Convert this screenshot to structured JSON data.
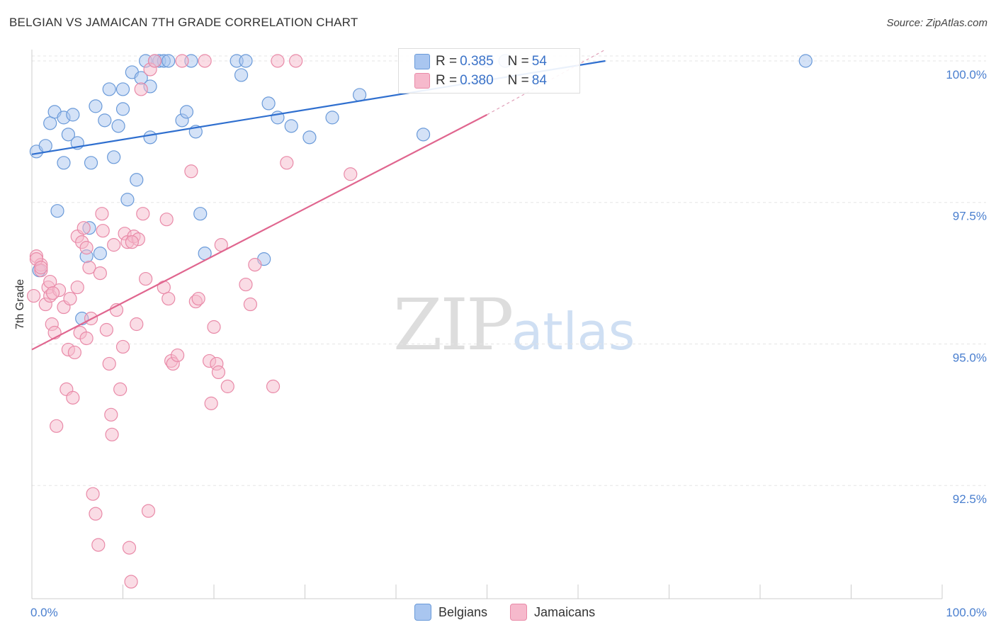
{
  "title": "BELGIAN VS JAMAICAN 7TH GRADE CORRELATION CHART",
  "source": "Source: ZipAtlas.com",
  "watermark": {
    "zip": "ZIP",
    "atlas": "atlas"
  },
  "legend": {
    "rows": [
      {
        "r_label": "R =",
        "r_value": "0.385",
        "n_label": "N =",
        "n_value": "54",
        "color": "#a9c6f0",
        "border": "#6a9ad9"
      },
      {
        "r_label": "R =",
        "r_value": "0.380",
        "n_label": "N =",
        "n_value": "84",
        "color": "#f6b9cc",
        "border": "#e98aa8"
      }
    ]
  },
  "bottom_legend": [
    {
      "label": "Belgians",
      "color": "#a9c6f0",
      "border": "#6a9ad9"
    },
    {
      "label": "Jamaicans",
      "color": "#f6b9cc",
      "border": "#e98aa8"
    }
  ],
  "chart_data": {
    "type": "scatter",
    "title": "BELGIAN VS JAMAICAN 7TH GRADE CORRELATION CHART",
    "xlabel": "",
    "ylabel": "7th Grade",
    "xlim": [
      0,
      100
    ],
    "ylim": [
      90.5,
      100.2
    ],
    "x_tick_labels": [
      "0.0%",
      "100.0%"
    ],
    "y_ticks": [
      92.5,
      95.0,
      97.5,
      100.0
    ],
    "y_tick_labels": [
      "92.5%",
      "95.0%",
      "97.5%",
      "100.0%"
    ],
    "grid": true,
    "series": [
      {
        "name": "Belgians",
        "color": "#6a9ad9",
        "fill": "#a9c6f0",
        "line_color": "#2f6fcf",
        "trend": {
          "x0": 0,
          "y0": 98.35,
          "x1": 63,
          "y1": 100.0
        },
        "points": [
          [
            0.5,
            98.4
          ],
          [
            1.5,
            98.5
          ],
          [
            2.0,
            98.9
          ],
          [
            2.5,
            99.1
          ],
          [
            2.8,
            97.35
          ],
          [
            3.5,
            98.2
          ],
          [
            3.5,
            99.0
          ],
          [
            4.0,
            98.7
          ],
          [
            4.5,
            99.05
          ],
          [
            5.0,
            98.55
          ],
          [
            5.5,
            95.45
          ],
          [
            6.0,
            96.55
          ],
          [
            6.3,
            97.05
          ],
          [
            6.5,
            98.2
          ],
          [
            7.0,
            99.2
          ],
          [
            7.5,
            96.6
          ],
          [
            8.0,
            98.95
          ],
          [
            8.5,
            99.5
          ],
          [
            9.0,
            98.3
          ],
          [
            9.5,
            98.85
          ],
          [
            10.0,
            99.15
          ],
          [
            10.0,
            99.5
          ],
          [
            10.5,
            97.55
          ],
          [
            11.0,
            99.8
          ],
          [
            11.5,
            97.9
          ],
          [
            12.0,
            99.7
          ],
          [
            12.5,
            100.0
          ],
          [
            13.0,
            99.55
          ],
          [
            13.0,
            98.65
          ],
          [
            14.0,
            100.0
          ],
          [
            14.5,
            100.0
          ],
          [
            15.0,
            100.0
          ],
          [
            16.5,
            98.95
          ],
          [
            17.0,
            99.1
          ],
          [
            18.0,
            98.75
          ],
          [
            18.5,
            97.3
          ],
          [
            19.0,
            96.6
          ],
          [
            22.5,
            100.0
          ],
          [
            23.0,
            99.75
          ],
          [
            25.5,
            96.5
          ],
          [
            26.0,
            99.25
          ],
          [
            27.0,
            99.0
          ],
          [
            28.5,
            98.85
          ],
          [
            30.5,
            98.65
          ],
          [
            33.0,
            99.0
          ],
          [
            36.0,
            99.4
          ],
          [
            43.0,
            98.7
          ],
          [
            50.0,
            100.0
          ],
          [
            52.0,
            100.0
          ],
          [
            85.0,
            100.0
          ],
          [
            17.5,
            100.0
          ],
          [
            0.8,
            96.3
          ],
          [
            13.5,
            100.0
          ],
          [
            23.5,
            100.0
          ]
        ]
      },
      {
        "name": "Jamaicans",
        "color": "#e98aa8",
        "fill": "#f6b9cc",
        "line_color": "#e0668f",
        "trend": {
          "x0": 0,
          "y0": 94.9,
          "x1": 50,
          "y1": 99.05
        },
        "points": [
          [
            0.2,
            95.85
          ],
          [
            0.5,
            96.55
          ],
          [
            1.0,
            96.4
          ],
          [
            1.0,
            96.3
          ],
          [
            1.5,
            95.7
          ],
          [
            1.8,
            96.0
          ],
          [
            2.0,
            96.1
          ],
          [
            2.0,
            95.85
          ],
          [
            2.2,
            95.35
          ],
          [
            2.5,
            95.2
          ],
          [
            2.7,
            93.55
          ],
          [
            3.0,
            95.95
          ],
          [
            3.5,
            95.65
          ],
          [
            3.8,
            94.2
          ],
          [
            4.0,
            94.9
          ],
          [
            4.2,
            95.8
          ],
          [
            4.5,
            94.05
          ],
          [
            4.7,
            94.85
          ],
          [
            5.0,
            96.0
          ],
          [
            5.0,
            96.9
          ],
          [
            5.3,
            95.2
          ],
          [
            5.5,
            96.8
          ],
          [
            5.7,
            97.05
          ],
          [
            6.0,
            95.1
          ],
          [
            6.3,
            96.35
          ],
          [
            6.5,
            95.45
          ],
          [
            6.7,
            92.35
          ],
          [
            7.0,
            92.0
          ],
          [
            7.3,
            91.45
          ],
          [
            7.5,
            96.25
          ],
          [
            7.7,
            97.3
          ],
          [
            7.8,
            97.0
          ],
          [
            8.2,
            95.25
          ],
          [
            8.5,
            94.65
          ],
          [
            8.7,
            93.75
          ],
          [
            8.8,
            93.4
          ],
          [
            9.0,
            96.75
          ],
          [
            9.3,
            95.6
          ],
          [
            9.7,
            94.2
          ],
          [
            10.0,
            94.95
          ],
          [
            10.2,
            96.95
          ],
          [
            10.5,
            96.8
          ],
          [
            10.7,
            91.4
          ],
          [
            10.9,
            90.8
          ],
          [
            11.2,
            96.9
          ],
          [
            11.5,
            95.35
          ],
          [
            11.7,
            96.85
          ],
          [
            12.0,
            99.5
          ],
          [
            12.2,
            97.3
          ],
          [
            12.5,
            96.15
          ],
          [
            12.8,
            92.05
          ],
          [
            13.0,
            99.85
          ],
          [
            13.5,
            100.0
          ],
          [
            14.5,
            96.0
          ],
          [
            14.8,
            97.2
          ],
          [
            15.0,
            95.8
          ],
          [
            15.3,
            94.7
          ],
          [
            15.5,
            94.65
          ],
          [
            16.0,
            94.8
          ],
          [
            16.5,
            100.0
          ],
          [
            17.5,
            98.05
          ],
          [
            18.0,
            95.75
          ],
          [
            18.3,
            95.8
          ],
          [
            19.0,
            100.0
          ],
          [
            19.5,
            94.7
          ],
          [
            19.7,
            93.95
          ],
          [
            20.0,
            95.3
          ],
          [
            20.3,
            94.65
          ],
          [
            20.5,
            94.5
          ],
          [
            20.8,
            96.75
          ],
          [
            21.5,
            94.25
          ],
          [
            23.5,
            96.05
          ],
          [
            24.0,
            95.7
          ],
          [
            24.5,
            96.4
          ],
          [
            26.5,
            94.25
          ],
          [
            27.0,
            100.0
          ],
          [
            28.0,
            98.2
          ],
          [
            29.0,
            100.0
          ],
          [
            35.0,
            98.0
          ],
          [
            0.5,
            96.5
          ],
          [
            1.0,
            96.35
          ],
          [
            6.0,
            96.7
          ],
          [
            2.3,
            95.9
          ],
          [
            11.0,
            96.8
          ]
        ]
      }
    ]
  }
}
